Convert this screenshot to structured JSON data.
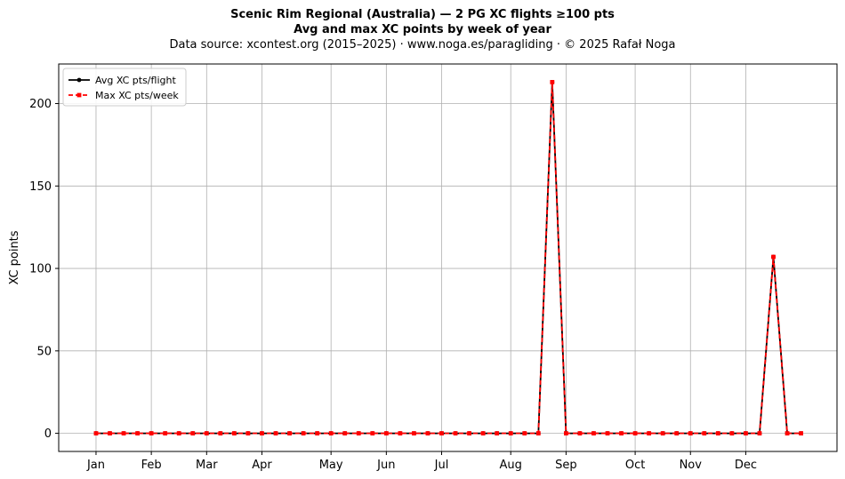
{
  "header": {
    "title_line1": "Scenic Rim Regional (Australia)  —  2 PG XC flights ≥100 pts",
    "title_line2": "Avg and max XC points by week of year",
    "subtitle": "Data source: xcontest.org (2015–2025)  ·  www.noga.es/paragliding  ·  © 2025 Rafał Noga"
  },
  "chart_data": {
    "type": "line",
    "title": "Scenic Rim Regional (Australia)  —  2 PG XC flights ≥100 pts",
    "subtitle": "Avg and max XC points by week of year",
    "xlabel": "",
    "ylabel": "XC points",
    "ylim": [
      -11,
      224
    ],
    "yticks": [
      0,
      50,
      100,
      150,
      200
    ],
    "grid": true,
    "legend_position": "top-left",
    "x_ticks": [
      {
        "label": "Jan",
        "week": 1
      },
      {
        "label": "Feb",
        "week": 5
      },
      {
        "label": "Mar",
        "week": 9
      },
      {
        "label": "Apr",
        "week": 13
      },
      {
        "label": "May",
        "week": 18
      },
      {
        "label": "Jun",
        "week": 22
      },
      {
        "label": "Jul",
        "week": 26
      },
      {
        "label": "Aug",
        "week": 31
      },
      {
        "label": "Sep",
        "week": 35
      },
      {
        "label": "Oct",
        "week": 40
      },
      {
        "label": "Nov",
        "week": 44
      },
      {
        "label": "Dec",
        "week": 48
      }
    ],
    "x": [
      1,
      2,
      3,
      4,
      5,
      6,
      7,
      8,
      9,
      10,
      11,
      12,
      13,
      14,
      15,
      16,
      17,
      18,
      19,
      20,
      21,
      22,
      23,
      24,
      25,
      26,
      27,
      28,
      29,
      30,
      31,
      32,
      33,
      34,
      35,
      36,
      37,
      38,
      39,
      40,
      41,
      42,
      43,
      44,
      45,
      46,
      47,
      48,
      49,
      50,
      51,
      52
    ],
    "series": [
      {
        "name": "Avg XC pts/flight",
        "color": "#000000",
        "line_style": "solid",
        "marker": "circle",
        "values": [
          0,
          0,
          0,
          0,
          0,
          0,
          0,
          0,
          0,
          0,
          0,
          0,
          0,
          0,
          0,
          0,
          0,
          0,
          0,
          0,
          0,
          0,
          0,
          0,
          0,
          0,
          0,
          0,
          0,
          0,
          0,
          0,
          0,
          213,
          0,
          0,
          0,
          0,
          0,
          0,
          0,
          0,
          0,
          0,
          0,
          0,
          0,
          0,
          0,
          107,
          0,
          0
        ]
      },
      {
        "name": "Max XC pts/week",
        "color": "#ff0000",
        "line_style": "dashed",
        "marker": "square",
        "values": [
          0,
          0,
          0,
          0,
          0,
          0,
          0,
          0,
          0,
          0,
          0,
          0,
          0,
          0,
          0,
          0,
          0,
          0,
          0,
          0,
          0,
          0,
          0,
          0,
          0,
          0,
          0,
          0,
          0,
          0,
          0,
          0,
          0,
          213,
          0,
          0,
          0,
          0,
          0,
          0,
          0,
          0,
          0,
          0,
          0,
          0,
          0,
          0,
          0,
          107,
          0,
          0
        ]
      }
    ]
  }
}
